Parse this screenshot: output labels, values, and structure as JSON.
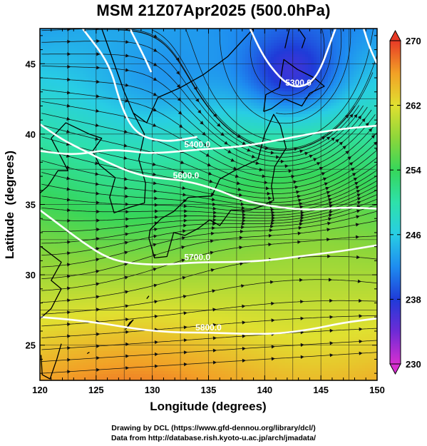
{
  "title": "MSM 21Z07Apr2025 (500.0hPa)",
  "credits": {
    "line1": "Drawing by DCL (https://www.gfd-dennou.org/library/dcl/)",
    "line2": "Data from http://database.rish.kyoto-u.ac.jp/arch/jmadata/"
  },
  "chart_data": {
    "type": "heatmap",
    "xlabel": "Longitude (degrees)",
    "ylabel": "Latitude  (degrees)",
    "xlim": [
      120,
      150
    ],
    "ylim": [
      22.5,
      47.5
    ],
    "xticks": [
      120,
      125,
      130,
      135,
      140,
      145,
      150
    ],
    "yticks": [
      25,
      30,
      35,
      40,
      45
    ],
    "grid": true,
    "fill_variable_range": [
      230,
      270
    ],
    "colorbar": {
      "ticks": [
        230,
        238,
        246,
        254,
        262,
        270
      ],
      "extend": "both",
      "colors": [
        "#d62fd0",
        "#6d2bd6",
        "#1f3bd8",
        "#1e8cf0",
        "#2ac8e4",
        "#31e0a8",
        "#36d65a",
        "#8ed63a",
        "#e0e030",
        "#f2a626",
        "#f06a26",
        "#e83a26"
      ]
    },
    "contours": [
      {
        "label": "5400.0",
        "points": [
          [
            120,
            38.8
          ],
          [
            123,
            38.5
          ],
          [
            126,
            38.9
          ],
          [
            128,
            38.8
          ],
          [
            130,
            38.6
          ],
          [
            134,
            38.9
          ],
          [
            138,
            39.1
          ],
          [
            142,
            39.7
          ],
          [
            146,
            40.3
          ],
          [
            150,
            40.6
          ]
        ]
      },
      {
        "label": "5600.0",
        "points": [
          [
            120,
            40.7
          ],
          [
            122,
            39.6
          ],
          [
            124,
            38.8
          ],
          [
            126,
            38.0
          ],
          [
            128,
            37.3
          ],
          [
            130,
            36.9
          ],
          [
            133,
            36.7
          ],
          [
            136,
            36.0
          ],
          [
            138,
            35.3
          ],
          [
            141,
            34.8
          ],
          [
            144,
            34.6
          ],
          [
            147,
            34.8
          ],
          [
            150,
            34.7
          ]
        ]
      },
      {
        "label": "5700.0",
        "points": [
          [
            120,
            34.6
          ],
          [
            122,
            33.4
          ],
          [
            124,
            32.2
          ],
          [
            126,
            31.2
          ],
          [
            128,
            30.8
          ],
          [
            131,
            30.7
          ],
          [
            134,
            30.9
          ],
          [
            137,
            30.9
          ],
          [
            140,
            31.0
          ],
          [
            143,
            31.3
          ],
          [
            147,
            31.7
          ],
          [
            150,
            32.1
          ]
        ]
      },
      {
        "label": "5800.0",
        "points": [
          [
            120,
            27.0
          ],
          [
            123,
            26.8
          ],
          [
            126,
            26.5
          ],
          [
            129,
            26.1
          ],
          [
            132,
            25.9
          ],
          [
            135,
            25.9
          ],
          [
            138,
            25.8
          ],
          [
            141,
            25.8
          ],
          [
            144,
            26.1
          ],
          [
            147,
            26.6
          ],
          [
            150,
            26.9
          ]
        ]
      },
      {
        "label": "",
        "points": [
          [
            123.8,
            47.5
          ],
          [
            126.2,
            45.0
          ],
          [
            127.2,
            42.0
          ],
          [
            128.5,
            40.0
          ],
          [
            131.0,
            39.4
          ],
          [
            134.0,
            39.8
          ]
        ]
      },
      {
        "label": "5300.0",
        "points": [
          [
            138.7,
            47.5
          ],
          [
            139.7,
            45.8
          ],
          [
            140.7,
            44.6
          ],
          [
            141.9,
            43.6
          ],
          [
            143.0,
            43.3
          ],
          [
            144.2,
            43.7
          ],
          [
            145.0,
            44.7
          ],
          [
            145.7,
            46.2
          ],
          [
            146.3,
            47.5
          ]
        ]
      },
      {
        "label": "",
        "points": [
          [
            128.0,
            47.5
          ],
          [
            129.4,
            45.3
          ],
          [
            129.9,
            44.4
          ]
        ]
      },
      {
        "label": "",
        "points": [
          [
            148.8,
            47.5
          ],
          [
            149.3,
            46.2
          ],
          [
            150.0,
            45.0
          ]
        ]
      }
    ],
    "contour_labels": [
      "5400.0",
      "5600.0",
      "5700.0",
      "5800.0",
      "5300.0"
    ]
  }
}
